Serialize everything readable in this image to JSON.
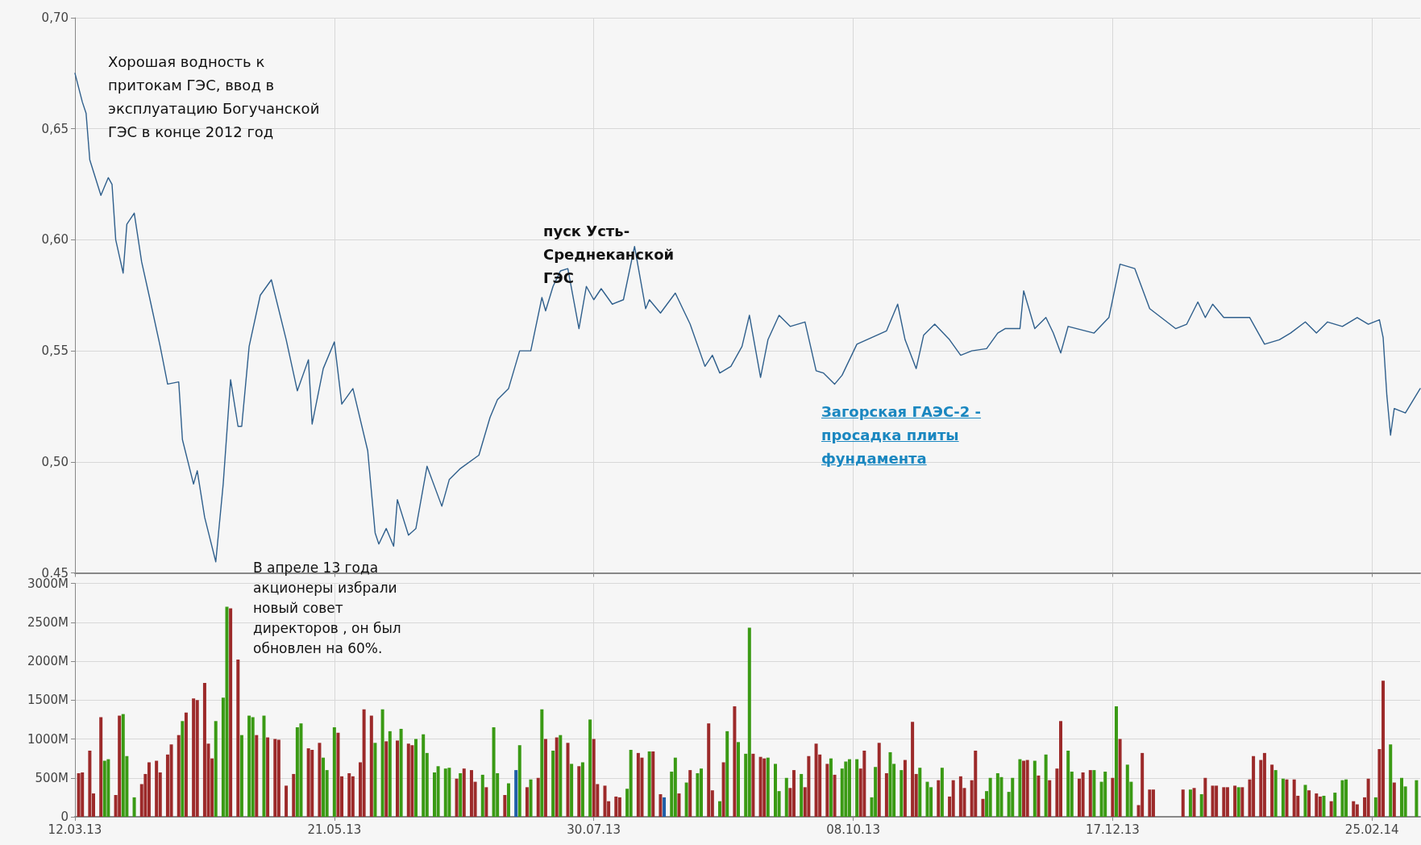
{
  "chart_data": [
    {
      "type": "line",
      "xlim": [
        "2013-03-12",
        "2014-03-10"
      ],
      "ylim": [
        0.45,
        0.7
      ],
      "xticks": [
        {
          "value": "2013-03-12",
          "label": null
        },
        {
          "value": "2013-05-21",
          "label": null
        },
        {
          "value": "2013-07-30",
          "label": null
        },
        {
          "value": "2013-10-08",
          "label": null
        },
        {
          "value": "2013-12-17",
          "label": null
        },
        {
          "value": "2014-02-25",
          "label": null
        }
      ],
      "yticks": [
        {
          "value": 0.45,
          "label": "0,45"
        },
        {
          "value": 0.5,
          "label": "0,50"
        },
        {
          "value": 0.55,
          "label": "0,55"
        },
        {
          "value": 0.6,
          "label": "0,60"
        },
        {
          "value": 0.65,
          "label": "0,65"
        },
        {
          "value": 0.7,
          "label": "0,70"
        }
      ],
      "tick_labels": "y",
      "grid": true,
      "annotations": [
        "Хорошая водность к притокам ГЭС, ввод в эксплуатацию Богучанской ГЭС в конце 2012 год",
        "пуск Усть-Среднеканской ГЭС",
        "Загорская ГАЭС-2 - просадка плиты фундамента"
      ],
      "series": [
        {
          "color": "#2f5f8c",
          "x": [
            "2013-03-12",
            "2013-03-14",
            "2013-03-15",
            "2013-03-16",
            "2013-03-19",
            "2013-03-21",
            "2013-03-22",
            "2013-03-23",
            "2013-03-25",
            "2013-03-26",
            "2013-03-28",
            "2013-03-30",
            "2013-04-01",
            "2013-04-04",
            "2013-04-06",
            "2013-04-09",
            "2013-04-10",
            "2013-04-13",
            "2013-04-14",
            "2013-04-16",
            "2013-04-19",
            "2013-04-21",
            "2013-04-23",
            "2013-04-25",
            "2013-04-26",
            "2013-04-28",
            "2013-05-01",
            "2013-05-04",
            "2013-05-08",
            "2013-05-11",
            "2013-05-14",
            "2013-05-15",
            "2013-05-18",
            "2013-05-21",
            "2013-05-23",
            "2013-05-26",
            "2013-05-30",
            "2013-06-01",
            "2013-06-02",
            "2013-06-04",
            "2013-06-06",
            "2013-06-07",
            "2013-06-10",
            "2013-06-12",
            "2013-06-15",
            "2013-06-19",
            "2013-06-21",
            "2013-06-24",
            "2013-06-29",
            "2013-07-02",
            "2013-07-04",
            "2013-07-07",
            "2013-07-10",
            "2013-07-13",
            "2013-07-16",
            "2013-07-17",
            "2013-07-19",
            "2013-07-21",
            "2013-07-23",
            "2013-07-26",
            "2013-07-28",
            "2013-07-30",
            "2013-08-01",
            "2013-08-04",
            "2013-08-07",
            "2013-08-10",
            "2013-08-13",
            "2013-08-14",
            "2013-08-17",
            "2013-08-21",
            "2013-08-25",
            "2013-08-29",
            "2013-08-31",
            "2013-09-02",
            "2013-09-05",
            "2013-09-08",
            "2013-09-10",
            "2013-09-13",
            "2013-09-15",
            "2013-09-18",
            "2013-09-21",
            "2013-09-25",
            "2013-09-28",
            "2013-09-30",
            "2013-10-03",
            "2013-10-05",
            "2013-10-09",
            "2013-10-13",
            "2013-10-17",
            "2013-10-20",
            "2013-10-22",
            "2013-10-25",
            "2013-10-27",
            "2013-10-30",
            "2013-11-03",
            "2013-11-06",
            "2013-11-09",
            "2013-11-13",
            "2013-11-16",
            "2013-11-18",
            "2013-11-22",
            "2013-11-23",
            "2013-11-26",
            "2013-11-29",
            "2013-12-01",
            "2013-12-03",
            "2013-12-05",
            "2013-12-12",
            "2013-12-16",
            "2013-12-19",
            "2013-12-23",
            "2013-12-27",
            "2014-01-03",
            "2014-01-06",
            "2014-01-09",
            "2014-01-11",
            "2014-01-13",
            "2014-01-16",
            "2014-01-23",
            "2014-01-27",
            "2014-01-31",
            "2014-02-03",
            "2014-02-07",
            "2014-02-10",
            "2014-02-13",
            "2014-02-17",
            "2014-02-21",
            "2014-02-24",
            "2014-02-27",
            "2014-02-28",
            "2014-03-01",
            "2014-03-02",
            "2014-03-03",
            "2014-03-06",
            "2014-03-10"
          ],
          "values": [
            0.675,
            0.662,
            0.657,
            0.636,
            0.62,
            0.628,
            0.625,
            0.6,
            0.585,
            0.607,
            0.612,
            0.59,
            0.575,
            0.552,
            0.535,
            0.536,
            0.51,
            0.49,
            0.496,
            0.475,
            0.455,
            0.49,
            0.537,
            0.516,
            0.516,
            0.552,
            0.575,
            0.582,
            0.555,
            0.532,
            0.546,
            0.517,
            0.542,
            0.554,
            0.526,
            0.533,
            0.505,
            0.468,
            0.463,
            0.47,
            0.462,
            0.483,
            0.467,
            0.47,
            0.498,
            0.48,
            0.492,
            0.497,
            0.503,
            0.52,
            0.528,
            0.533,
            0.55,
            0.55,
            0.574,
            0.568,
            0.579,
            0.586,
            0.587,
            0.56,
            0.579,
            0.573,
            0.578,
            0.571,
            0.573,
            0.597,
            0.569,
            0.573,
            0.567,
            0.576,
            0.562,
            0.543,
            0.548,
            0.54,
            0.543,
            0.552,
            0.566,
            0.538,
            0.555,
            0.566,
            0.561,
            0.563,
            0.541,
            0.54,
            0.535,
            0.539,
            0.553,
            0.556,
            0.559,
            0.571,
            0.555,
            0.542,
            0.557,
            0.562,
            0.555,
            0.548,
            0.55,
            0.551,
            0.558,
            0.56,
            0.56,
            0.577,
            0.56,
            0.565,
            0.558,
            0.549,
            0.561,
            0.558,
            0.565,
            0.589,
            0.587,
            0.569,
            0.56,
            0.562,
            0.572,
            0.565,
            0.571,
            0.565,
            0.565,
            0.553,
            0.555,
            0.558,
            0.563,
            0.558,
            0.563,
            0.561,
            0.565,
            0.562,
            0.564,
            0.556,
            0.53,
            0.512,
            0.524,
            0.522,
            0.533
          ]
        }
      ]
    },
    {
      "type": "bar",
      "xlim": [
        "2013-03-12",
        "2014-03-10"
      ],
      "ylim": [
        0,
        3000
      ],
      "xticks": [
        {
          "value": "2013-03-12",
          "label": "12.03.13"
        },
        {
          "value": "2013-05-21",
          "label": "21.05.13"
        },
        {
          "value": "2013-07-30",
          "label": "30.07.13"
        },
        {
          "value": "2013-10-08",
          "label": "08.10.13"
        },
        {
          "value": "2013-12-17",
          "label": "17.12.13"
        },
        {
          "value": "2014-02-25",
          "label": "25.02.14"
        }
      ],
      "yticks": [
        0,
        {
          "value": 500,
          "label": "500M"
        },
        {
          "value": 1000,
          "label": "1000M"
        },
        {
          "value": 1500,
          "label": "1500M"
        },
        {
          "value": 2000,
          "label": "2000M"
        },
        {
          "value": 2500,
          "label": "2500M"
        },
        {
          "value": 3000,
          "label": "3000M"
        }
      ],
      "grid": true,
      "annotations": [
        "В апреле 13 года акционеры избрали новый совет директоров , он был обновлен на 60%."
      ],
      "series": [
        {
          "color": "#9c2a2a",
          "x": [
            "2013-03-13",
            "2013-03-14",
            "2013-03-16",
            "2013-03-17",
            "2013-03-19",
            "2013-03-23",
            "2013-03-24",
            "2013-03-30",
            "2013-03-31",
            "2013-04-01",
            "2013-04-03",
            "2013-04-04",
            "2013-04-06",
            "2013-04-07",
            "2013-04-09",
            "2013-04-11",
            "2013-04-13",
            "2013-04-14",
            "2013-04-16",
            "2013-04-17",
            "2013-04-18",
            "2013-04-23",
            "2013-04-25",
            "2013-04-30",
            "2013-05-03",
            "2013-05-05",
            "2013-05-06",
            "2013-05-08",
            "2013-05-10",
            "2013-05-14",
            "2013-05-15",
            "2013-05-17",
            "2013-05-22",
            "2013-05-23",
            "2013-05-25",
            "2013-05-26",
            "2013-05-28",
            "2013-05-29",
            "2013-05-31",
            "2013-06-04",
            "2013-06-07",
            "2013-06-10",
            "2013-06-11",
            "2013-06-23",
            "2013-06-25",
            "2013-06-27",
            "2013-06-28",
            "2013-07-01",
            "2013-07-06",
            "2013-07-12",
            "2013-07-15",
            "2013-07-17",
            "2013-07-20",
            "2013-07-23",
            "2013-07-26",
            "2013-07-30",
            "2013-07-31",
            "2013-08-02",
            "2013-08-03",
            "2013-08-05",
            "2013-08-06",
            "2013-08-11",
            "2013-08-12",
            "2013-08-15",
            "2013-08-17",
            "2013-08-22",
            "2013-08-25",
            "2013-08-30",
            "2013-08-31",
            "2013-09-03",
            "2013-09-06",
            "2013-09-11",
            "2013-09-13",
            "2013-09-14",
            "2013-09-21",
            "2013-09-22",
            "2013-09-25",
            "2013-09-26",
            "2013-09-28",
            "2013-09-29",
            "2013-10-01",
            "2013-10-03",
            "2013-10-10",
            "2013-10-11",
            "2013-10-15",
            "2013-10-17",
            "2013-10-22",
            "2013-10-24",
            "2013-10-25",
            "2013-10-31",
            "2013-11-03",
            "2013-11-04",
            "2013-11-06",
            "2013-11-07",
            "2013-11-09",
            "2013-11-10",
            "2013-11-12",
            "2013-11-23",
            "2013-11-24",
            "2013-11-27",
            "2013-11-30",
            "2013-12-02",
            "2013-12-03",
            "2013-12-08",
            "2013-12-09",
            "2013-12-11",
            "2013-12-17",
            "2013-12-19",
            "2013-12-24",
            "2013-12-25",
            "2013-12-27",
            "2013-12-28",
            "2014-01-05",
            "2014-01-08",
            "2014-01-11",
            "2014-01-13",
            "2014-01-14",
            "2014-01-16",
            "2014-01-17",
            "2014-01-19",
            "2014-01-21",
            "2014-01-23",
            "2014-01-24",
            "2014-01-26",
            "2014-01-27",
            "2014-01-29",
            "2014-02-02",
            "2014-02-04",
            "2014-02-05",
            "2014-02-08",
            "2014-02-10",
            "2014-02-11",
            "2014-02-14",
            "2014-02-20",
            "2014-02-21",
            "2014-02-23",
            "2014-02-24",
            "2014-02-27",
            "2014-02-28",
            "2014-03-03"
          ],
          "values": [
            560,
            570,
            850,
            300,
            1280,
            280,
            1300,
            420,
            550,
            700,
            720,
            570,
            800,
            930,
            1050,
            1340,
            1520,
            1500,
            1720,
            940,
            750,
            2680,
            2020,
            1050,
            1020,
            1000,
            990,
            400,
            550,
            880,
            860,
            950,
            1080,
            520,
            560,
            520,
            700,
            1380,
            1300,
            970,
            980,
            940,
            920,
            490,
            620,
            600,
            450,
            380,
            280,
            380,
            500,
            1000,
            1020,
            950,
            650,
            1000,
            420,
            400,
            200,
            260,
            250,
            820,
            760,
            840,
            290,
            300,
            600,
            1200,
            340,
            700,
            1420,
            810,
            770,
            750,
            370,
            600,
            380,
            780,
            940,
            800,
            680,
            540,
            620,
            850,
            950,
            560,
            730,
            1220,
            550,
            470,
            260,
            470,
            520,
            370,
            470,
            850,
            230,
            720,
            730,
            530,
            470,
            620,
            1230,
            490,
            570,
            600,
            500,
            1000,
            150,
            820,
            350,
            350,
            350,
            370,
            500,
            400,
            400,
            380,
            380,
            400,
            380,
            480,
            780,
            730,
            820,
            670,
            480,
            480,
            270,
            340,
            300,
            260,
            200,
            200,
            160,
            250,
            490,
            870,
            1750,
            440
          ]
        },
        {
          "color": "#3a9a14",
          "x": [
            "2013-03-20",
            "2013-03-21",
            "2013-03-25",
            "2013-03-26",
            "2013-03-28",
            "2013-04-10",
            "2013-04-19",
            "2013-04-21",
            "2013-04-22",
            "2013-04-26",
            "2013-04-28",
            "2013-04-29",
            "2013-05-02",
            "2013-05-11",
            "2013-05-12",
            "2013-05-18",
            "2013-05-19",
            "2013-05-21",
            "2013-06-01",
            "2013-06-03",
            "2013-06-05",
            "2013-06-08",
            "2013-06-12",
            "2013-06-14",
            "2013-06-15",
            "2013-06-17",
            "2013-06-18",
            "2013-06-20",
            "2013-06-21",
            "2013-06-24",
            "2013-06-30",
            "2013-07-03",
            "2013-07-04",
            "2013-07-07",
            "2013-07-10",
            "2013-07-13",
            "2013-07-16",
            "2013-07-19",
            "2013-07-21",
            "2013-07-24",
            "2013-07-27",
            "2013-07-29",
            "2013-08-08",
            "2013-08-09",
            "2013-08-14",
            "2013-08-20",
            "2013-08-21",
            "2013-08-24",
            "2013-08-27",
            "2013-08-28",
            "2013-09-02",
            "2013-09-04",
            "2013-09-07",
            "2013-09-09",
            "2013-09-10",
            "2013-09-15",
            "2013-09-17",
            "2013-09-18",
            "2013-09-20",
            "2013-09-24",
            "2013-10-02",
            "2013-10-05",
            "2013-10-06",
            "2013-10-07",
            "2013-10-09",
            "2013-10-13",
            "2013-10-14",
            "2013-10-18",
            "2013-10-19",
            "2013-10-21",
            "2013-10-26",
            "2013-10-28",
            "2013-10-29",
            "2013-11-01",
            "2013-11-13",
            "2013-11-14",
            "2013-11-16",
            "2013-11-17",
            "2013-11-19",
            "2013-11-20",
            "2013-11-22",
            "2013-11-26",
            "2013-11-29",
            "2013-12-05",
            "2013-12-06",
            "2013-12-12",
            "2013-12-14",
            "2013-12-15",
            "2013-12-18",
            "2013-12-21",
            "2013-12-22",
            "2014-01-07",
            "2014-01-10",
            "2014-01-20",
            "2014-01-30",
            "2014-02-01",
            "2014-02-07",
            "2014-02-12",
            "2014-02-15",
            "2014-02-17",
            "2014-02-18",
            "2014-02-26",
            "2014-03-02",
            "2014-03-05",
            "2014-03-06",
            "2014-03-09"
          ],
          "values": [
            720,
            740,
            1320,
            780,
            250,
            1230,
            1230,
            1530,
            2700,
            1050,
            1300,
            1280,
            1300,
            1150,
            1200,
            760,
            600,
            1150,
            950,
            1380,
            1100,
            1130,
            1000,
            1060,
            820,
            570,
            650,
            620,
            630,
            560,
            540,
            1150,
            560,
            430,
            920,
            480,
            1380,
            850,
            1050,
            680,
            700,
            1250,
            360,
            860,
            840,
            580,
            760,
            440,
            560,
            620,
            200,
            1100,
            960,
            810,
            2430,
            760,
            680,
            330,
            500,
            550,
            750,
            620,
            710,
            740,
            740,
            250,
            640,
            830,
            680,
            600,
            630,
            450,
            380,
            630,
            330,
            500,
            560,
            510,
            320,
            500,
            740,
            720,
            800,
            850,
            580,
            600,
            450,
            580,
            1420,
            670,
            450,
            350,
            290,
            380,
            600,
            490,
            410,
            270,
            310,
            470,
            480,
            250,
            930,
            500,
            390,
            470
          ]
        },
        {
          "color": "#1f5fa8",
          "x": [
            "2013-07-09",
            "2013-08-18"
          ],
          "values": [
            600,
            250
          ]
        }
      ]
    }
  ]
}
